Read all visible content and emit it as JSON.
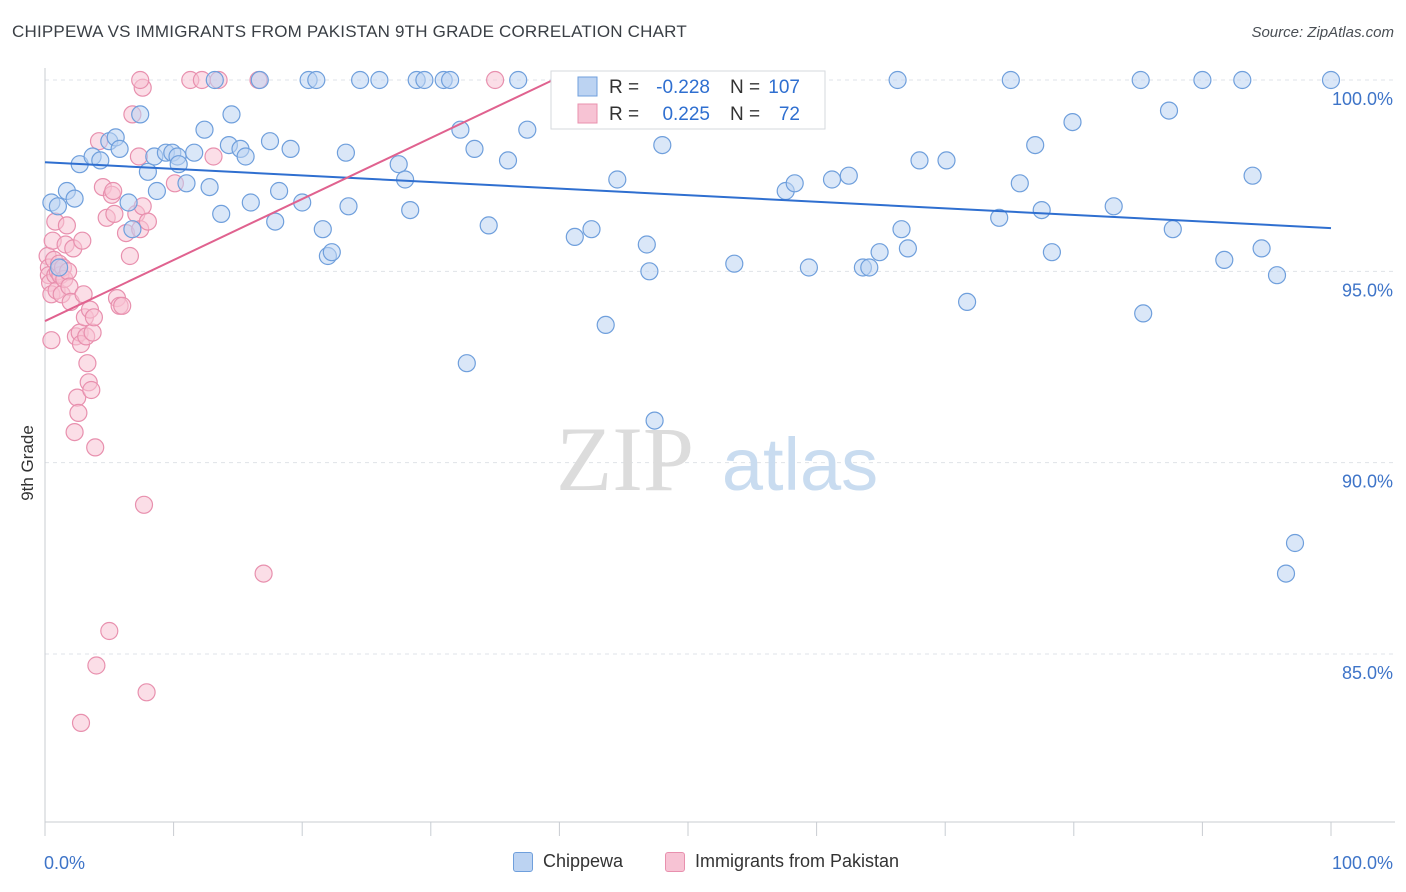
{
  "header": {
    "title": "CHIPPEWA VS IMMIGRANTS FROM PAKISTAN 9TH GRADE CORRELATION CHART",
    "source": "Source: ZipAtlas.com"
  },
  "watermark": {
    "zip": "ZIP",
    "atlas": "atlas"
  },
  "legend_box": {
    "rows": [
      {
        "r_label": "R =",
        "r_value": "-0.228",
        "n_label": "N =",
        "n_value": "107"
      },
      {
        "r_label": "R =",
        "r_value": "0.225",
        "n_label": "N =",
        "n_value": "72"
      }
    ]
  },
  "legend_bottom": {
    "items": [
      "Chippewa",
      "Immigrants from Pakistan"
    ]
  },
  "colors": {
    "blue_fill": "#bcd3f2",
    "blue_stroke": "#6f9fdc",
    "blue_line": "#2f6fd0",
    "pink_fill": "#f7c3d4",
    "pink_stroke": "#e890ae",
    "pink_line": "#e0628f",
    "tick_label": "#3e74c8",
    "grid": "#dfe3e8"
  },
  "chart_data": {
    "type": "scatter",
    "title": "CHIPPEWA VS IMMIGRANTS FROM PAKISTAN 9TH GRADE CORRELATION CHART",
    "xlabel": "",
    "ylabel": "9th Grade",
    "xlim": [
      0,
      100
    ],
    "ylim": [
      80.5,
      100.6
    ],
    "x_tick_labels": [
      "0.0%",
      "100.0%"
    ],
    "y_ticks": [
      85,
      90,
      95,
      100
    ],
    "y_tick_labels": [
      "85.0%",
      "90.0%",
      "95.0%",
      "100.0%"
    ],
    "grid": true,
    "legend_position": "top-center",
    "series": [
      {
        "name": "Chippewa",
        "r": -0.228,
        "n": 107,
        "trend": {
          "x": [
            0,
            100
          ],
          "y": [
            97.85,
            96.13
          ]
        },
        "points": [
          [
            0.5,
            96.8
          ],
          [
            1.0,
            96.7
          ],
          [
            1.1,
            95.1
          ],
          [
            1.7,
            97.1
          ],
          [
            2.3,
            96.9
          ],
          [
            2.7,
            97.8
          ],
          [
            3.7,
            98.0
          ],
          [
            4.3,
            97.9
          ],
          [
            5.0,
            98.4
          ],
          [
            5.5,
            98.5
          ],
          [
            5.8,
            98.2
          ],
          [
            6.5,
            96.8
          ],
          [
            6.8,
            96.1
          ],
          [
            7.4,
            99.1
          ],
          [
            8.0,
            97.6
          ],
          [
            8.5,
            98.0
          ],
          [
            8.7,
            97.1
          ],
          [
            9.4,
            98.1
          ],
          [
            9.9,
            98.1
          ],
          [
            10.3,
            98.0
          ],
          [
            10.4,
            97.8
          ],
          [
            11.0,
            97.3
          ],
          [
            11.6,
            98.1
          ],
          [
            12.4,
            98.7
          ],
          [
            12.8,
            97.2
          ],
          [
            13.2,
            100.0
          ],
          [
            13.7,
            96.5
          ],
          [
            14.3,
            98.3
          ],
          [
            14.5,
            99.1
          ],
          [
            15.2,
            98.2
          ],
          [
            15.6,
            98.0
          ],
          [
            16.0,
            96.8
          ],
          [
            16.7,
            100.0
          ],
          [
            17.5,
            98.4
          ],
          [
            17.9,
            96.3
          ],
          [
            18.2,
            97.1
          ],
          [
            19.1,
            98.2
          ],
          [
            20.0,
            96.8
          ],
          [
            20.5,
            100.0
          ],
          [
            21.1,
            100.0
          ],
          [
            21.6,
            96.1
          ],
          [
            22.0,
            95.4
          ],
          [
            22.3,
            95.5
          ],
          [
            23.4,
            98.1
          ],
          [
            23.6,
            96.7
          ],
          [
            24.5,
            100.0
          ],
          [
            26.0,
            100.0
          ],
          [
            27.5,
            97.8
          ],
          [
            28.0,
            97.4
          ],
          [
            28.4,
            96.6
          ],
          [
            28.9,
            100.0
          ],
          [
            29.5,
            100.0
          ],
          [
            31.0,
            100.0
          ],
          [
            31.5,
            100.0
          ],
          [
            32.3,
            98.7
          ],
          [
            32.8,
            92.6
          ],
          [
            33.4,
            98.2
          ],
          [
            34.5,
            96.2
          ],
          [
            36.8,
            100.0
          ],
          [
            37.5,
            98.7
          ],
          [
            40.0,
            100.0
          ],
          [
            41.2,
            95.9
          ],
          [
            42.5,
            96.1
          ],
          [
            43.0,
            100.0
          ],
          [
            43.6,
            93.6
          ],
          [
            44.2,
            99.3
          ],
          [
            44.5,
            97.4
          ],
          [
            46.8,
            95.7
          ],
          [
            47.0,
            95.0
          ],
          [
            47.4,
            91.1
          ],
          [
            48.0,
            98.3
          ],
          [
            48.8,
            100.0
          ],
          [
            49.2,
            100.0
          ],
          [
            50.2,
            100.0
          ],
          [
            50.8,
            100.0
          ],
          [
            53.6,
            95.2
          ],
          [
            57.6,
            97.1
          ],
          [
            59.4,
            95.1
          ],
          [
            61.2,
            97.4
          ],
          [
            62.5,
            97.5
          ],
          [
            63.6,
            95.1
          ],
          [
            64.1,
            95.1
          ],
          [
            64.9,
            95.5
          ],
          [
            66.3,
            100.0
          ],
          [
            66.6,
            96.1
          ],
          [
            67.1,
            95.6
          ],
          [
            70.1,
            97.9
          ],
          [
            71.7,
            94.2
          ],
          [
            75.1,
            100.0
          ],
          [
            75.8,
            97.3
          ],
          [
            77.0,
            98.3
          ],
          [
            77.5,
            96.6
          ],
          [
            78.3,
            95.5
          ],
          [
            79.9,
            98.9
          ],
          [
            83.1,
            96.7
          ],
          [
            85.2,
            100.0
          ],
          [
            85.4,
            93.9
          ],
          [
            87.4,
            99.2
          ],
          [
            87.7,
            96.1
          ],
          [
            90.0,
            100.0
          ],
          [
            91.7,
            95.3
          ],
          [
            93.1,
            100.0
          ],
          [
            93.9,
            97.5
          ],
          [
            94.6,
            95.6
          ],
          [
            95.8,
            94.9
          ],
          [
            96.5,
            87.1
          ],
          [
            97.2,
            87.9
          ],
          [
            100.0,
            100.0
          ],
          [
            36.0,
            97.9
          ],
          [
            58.3,
            97.3
          ],
          [
            68.0,
            97.9
          ],
          [
            74.2,
            96.4
          ]
        ]
      },
      {
        "name": "Immigrants from Pakistan",
        "r": 0.225,
        "n": 72,
        "trend": {
          "x": [
            0,
            39.5
          ],
          "y": [
            93.7,
            100.0
          ]
        },
        "points": [
          [
            0.2,
            95.4
          ],
          [
            0.3,
            95.1
          ],
          [
            0.3,
            94.9
          ],
          [
            0.4,
            94.7
          ],
          [
            0.5,
            94.4
          ],
          [
            0.5,
            93.2
          ],
          [
            0.6,
            95.8
          ],
          [
            0.7,
            95.3
          ],
          [
            0.8,
            96.3
          ],
          [
            0.8,
            94.9
          ],
          [
            0.9,
            94.5
          ],
          [
            1.0,
            95.0
          ],
          [
            1.1,
            95.2
          ],
          [
            1.2,
            94.9
          ],
          [
            1.3,
            94.4
          ],
          [
            1.4,
            95.1
          ],
          [
            1.5,
            94.8
          ],
          [
            1.6,
            95.7
          ],
          [
            1.7,
            96.2
          ],
          [
            1.8,
            95.0
          ],
          [
            1.9,
            94.6
          ],
          [
            2.0,
            94.2
          ],
          [
            2.2,
            95.6
          ],
          [
            2.3,
            90.8
          ],
          [
            2.4,
            93.3
          ],
          [
            2.5,
            91.7
          ],
          [
            2.6,
            91.3
          ],
          [
            2.7,
            93.4
          ],
          [
            2.8,
            93.1
          ],
          [
            2.9,
            95.8
          ],
          [
            3.0,
            94.4
          ],
          [
            3.1,
            93.8
          ],
          [
            3.2,
            93.3
          ],
          [
            3.3,
            92.6
          ],
          [
            3.4,
            92.1
          ],
          [
            3.5,
            94.0
          ],
          [
            3.6,
            91.9
          ],
          [
            3.7,
            93.4
          ],
          [
            3.8,
            93.8
          ],
          [
            3.9,
            90.4
          ],
          [
            4.0,
            84.7
          ],
          [
            4.2,
            98.4
          ],
          [
            4.5,
            97.2
          ],
          [
            4.8,
            96.4
          ],
          [
            5.0,
            85.6
          ],
          [
            5.2,
            97.0
          ],
          [
            5.4,
            96.5
          ],
          [
            5.6,
            94.3
          ],
          [
            5.8,
            94.1
          ],
          [
            6.0,
            94.1
          ],
          [
            6.3,
            96.0
          ],
          [
            6.6,
            95.4
          ],
          [
            6.8,
            99.1
          ],
          [
            7.1,
            96.5
          ],
          [
            7.3,
            98.0
          ],
          [
            7.4,
            96.1
          ],
          [
            7.6,
            96.7
          ],
          [
            7.7,
            88.9
          ],
          [
            7.9,
            84.0
          ],
          [
            8.0,
            96.3
          ],
          [
            10.1,
            97.3
          ],
          [
            11.3,
            100.0
          ],
          [
            12.2,
            100.0
          ],
          [
            13.1,
            98.0
          ],
          [
            13.5,
            100.0
          ],
          [
            16.6,
            100.0
          ],
          [
            17.0,
            87.1
          ],
          [
            35.0,
            100.0
          ],
          [
            2.8,
            83.2
          ],
          [
            5.3,
            97.1
          ],
          [
            7.6,
            99.8
          ],
          [
            7.4,
            100.0
          ]
        ]
      }
    ]
  }
}
